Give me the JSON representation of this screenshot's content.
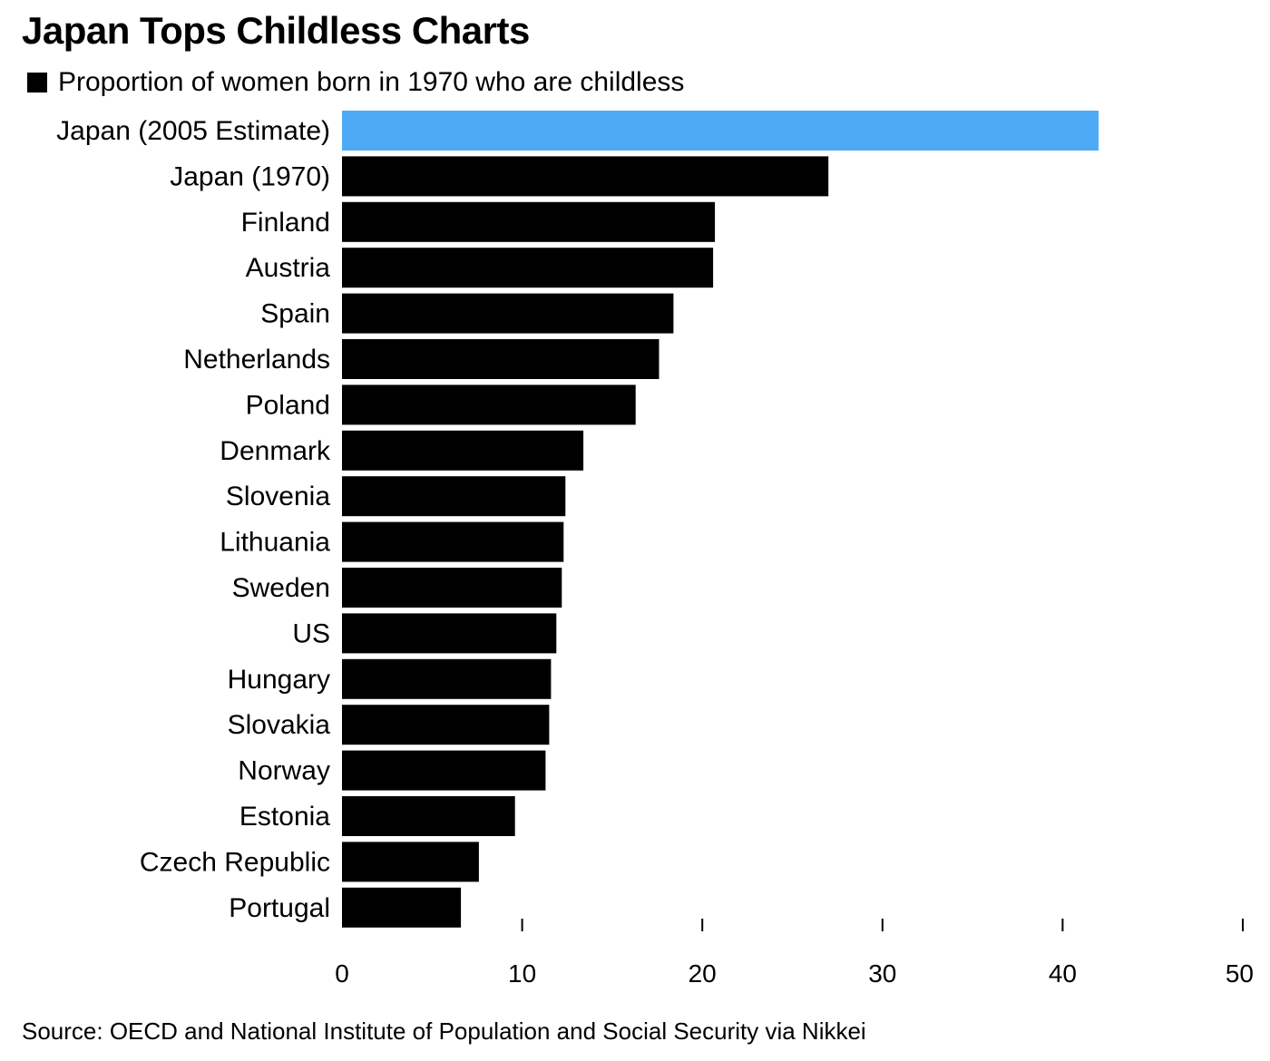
{
  "title": "Japan Tops Childless Charts",
  "legend": {
    "label": "Proportion of women born in 1970 who are childless",
    "color": "#000000"
  },
  "source": "Source: OECD and National Institute of Population and Social Security via Nikkei",
  "colors": {
    "highlight": "#4faaf5",
    "bar": "#000000"
  },
  "chart_data": {
    "type": "bar",
    "orientation": "horizontal",
    "title": "Japan Tops Childless Charts",
    "xlabel": "",
    "ylabel": "",
    "xlim": [
      0,
      50
    ],
    "ticks": [
      0,
      10,
      20,
      30,
      40,
      50
    ],
    "grid": false,
    "highlight_index": 0,
    "categories": [
      "Japan (2005 Estimate)",
      "Japan (1970)",
      "Finland",
      "Austria",
      "Spain",
      "Netherlands",
      "Poland",
      "Denmark",
      "Slovenia",
      "Lithuania",
      "Sweden",
      "US",
      "Hungary",
      "Slovakia",
      "Norway",
      "Estonia",
      "Czech Republic",
      "Portugal"
    ],
    "values": [
      42,
      27,
      20.7,
      20.6,
      18.4,
      17.6,
      16.3,
      13.4,
      12.4,
      12.3,
      12.2,
      11.9,
      11.6,
      11.5,
      11.3,
      9.6,
      7.6,
      6.6
    ]
  }
}
